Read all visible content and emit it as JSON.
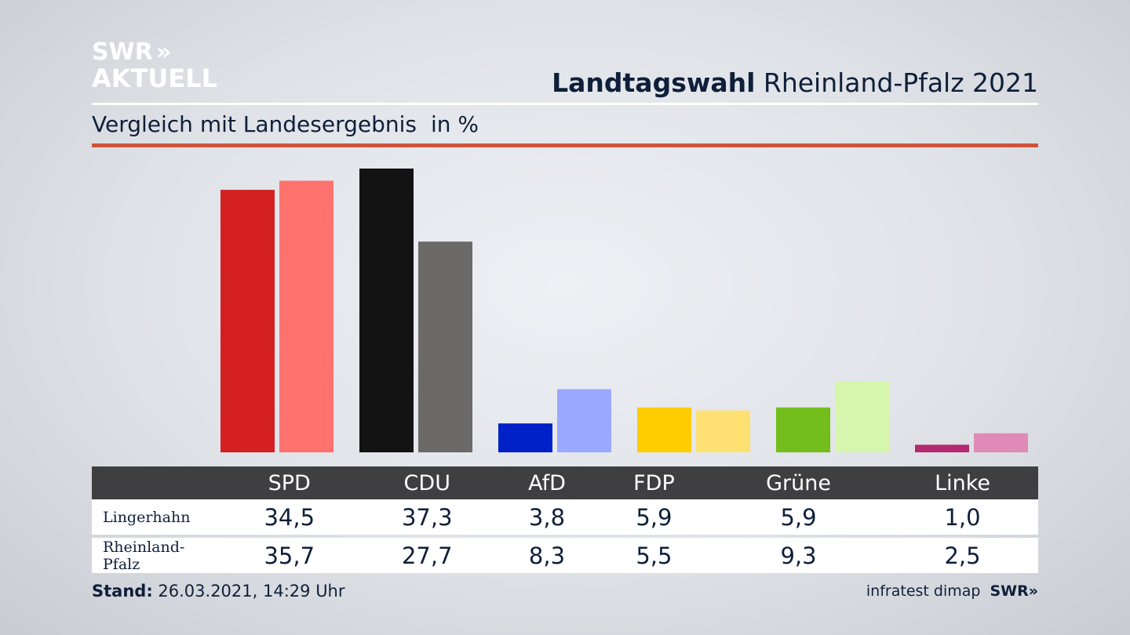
{
  "logo": {
    "line1": "SWR",
    "line2": "AKTUELL",
    "chevrons": "»"
  },
  "header": {
    "title_bold": "Landtagswahl",
    "title_rest": "Rheinland-Pfalz 2021",
    "subtitle": "Vergleich mit Landesergebnis",
    "unit": "in %"
  },
  "chart_data": {
    "type": "bar",
    "categories": [
      "SPD",
      "CDU",
      "AfD",
      "FDP",
      "Grüne",
      "Linke"
    ],
    "series": [
      {
        "name": "Lingerhahn",
        "values": [
          34.5,
          37.3,
          3.8,
          5.9,
          5.9,
          1.0
        ],
        "colors": [
          "#d42020",
          "#131313",
          "#0020c8",
          "#ffcc00",
          "#73bd1c",
          "#b32a6e"
        ]
      },
      {
        "name": "Rheinland-Pfalz",
        "values": [
          35.7,
          27.7,
          8.3,
          5.5,
          9.3,
          2.5
        ],
        "colors": [
          "#ff726e",
          "#6c6a68",
          "#9aa8ff",
          "#ffe173",
          "#d6f5ad",
          "#e08ab7"
        ]
      }
    ],
    "ylim": [
      0,
      37.3
    ],
    "grid": false
  },
  "table": {
    "rows": [
      {
        "label": "Lingerhahn",
        "values": [
          "34,5",
          "37,3",
          "3,8",
          "5,9",
          "5,9",
          "1,0"
        ]
      },
      {
        "label": "Rheinland-Pfalz",
        "values": [
          "35,7",
          "27,7",
          "8,3",
          "5,5",
          "9,3",
          "2,5"
        ]
      }
    ]
  },
  "footer": {
    "stand_label": "Stand:",
    "stand_value": "26.03.2021, 14:29 Uhr",
    "source": "infratest dimap",
    "source_logo": "SWR»"
  }
}
